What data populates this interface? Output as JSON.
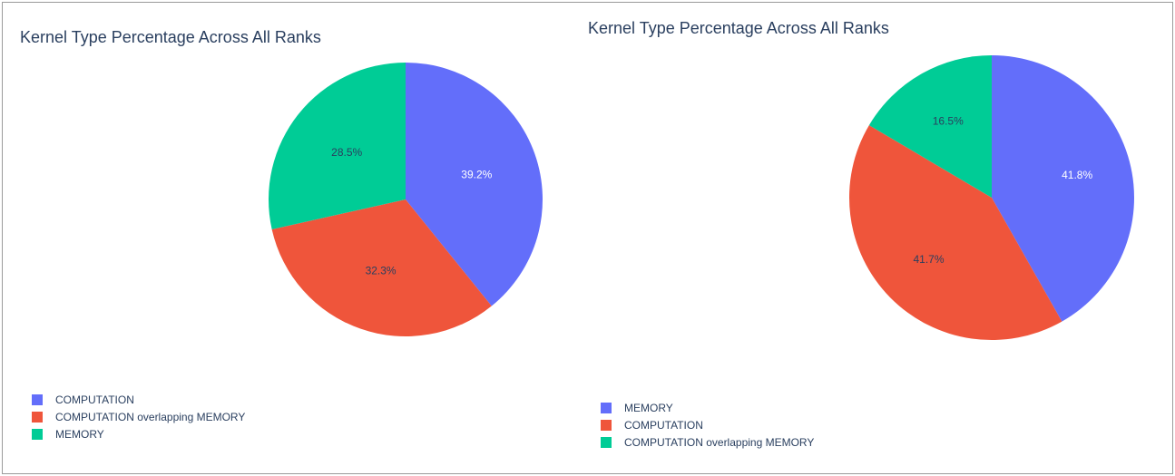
{
  "chart_data": [
    {
      "type": "pie",
      "title": "Kernel Type Percentage Across All Ranks",
      "legend_position": "bottom-left",
      "slices": [
        {
          "label": "COMPUTATION",
          "value": 39.2,
          "text": "39.2%",
          "color": "#636efa",
          "text_color": "#ffffff"
        },
        {
          "label": "COMPUTATION overlapping MEMORY",
          "value": 32.3,
          "text": "32.3%",
          "color": "#ef553b",
          "text_color": "#2a3f5f"
        },
        {
          "label": "MEMORY",
          "value": 28.5,
          "text": "28.5%",
          "color": "#00cc96",
          "text_color": "#2a3f5f"
        }
      ]
    },
    {
      "type": "pie",
      "title": "Kernel Type Percentage Across All Ranks",
      "legend_position": "bottom-left",
      "slices": [
        {
          "label": "MEMORY",
          "value": 41.8,
          "text": "41.8%",
          "color": "#636efa",
          "text_color": "#ffffff"
        },
        {
          "label": "COMPUTATION",
          "value": 41.7,
          "text": "41.7%",
          "color": "#ef553b",
          "text_color": "#2a3f5f"
        },
        {
          "label": "COMPUTATION overlapping MEMORY",
          "value": 16.5,
          "text": "16.5%",
          "color": "#00cc96",
          "text_color": "#2a3f5f"
        }
      ]
    }
  ]
}
